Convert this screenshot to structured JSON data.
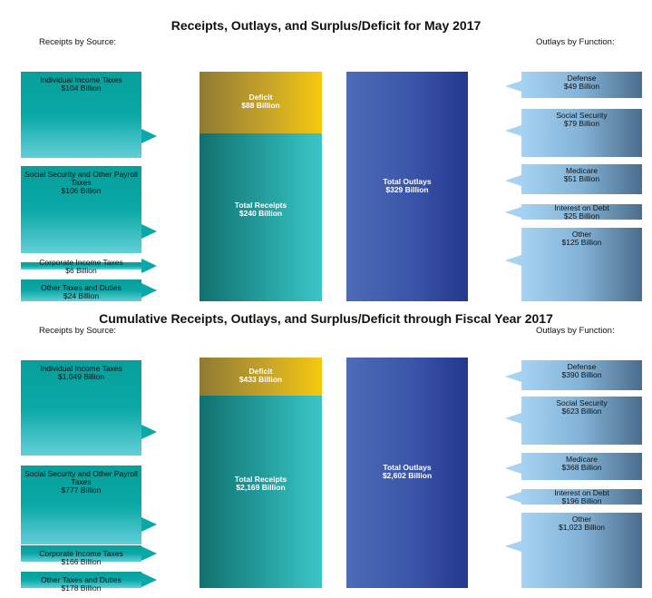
{
  "chart_data": [
    {
      "type": "bar",
      "title": "Receipts, Outlays, and Surplus/Deficit for May 2017",
      "receipts_heading": "Receipts by Source:",
      "outlays_heading": "Outlays by Function:",
      "receipts_by_source": [
        {
          "label": "Individual Income Taxes",
          "value_text": "$104 Billion",
          "value": 104
        },
        {
          "label": "Social Security and Other Payroll Taxes",
          "value_text": "$106 Billion",
          "value": 106
        },
        {
          "label": "Corporate Income Taxes",
          "value_text": "$6 Billion",
          "value": 6
        },
        {
          "label": "Other Taxes and Duties",
          "value_text": "$24 Billion",
          "value": 24
        }
      ],
      "deficit": {
        "label": "Deficit",
        "value_text": "$88 Billion",
        "value": 88
      },
      "total_receipts": {
        "label": "Total Receipts",
        "value_text": "$240 Billion",
        "value": 240
      },
      "total_outlays": {
        "label": "Total Outlays",
        "value_text": "$329 Billion",
        "value": 329
      },
      "outlays_by_function": [
        {
          "label": "Defense",
          "value_text": "$49 Billion",
          "value": 49
        },
        {
          "label": "Social Security",
          "value_text": "$79 Billion",
          "value": 79
        },
        {
          "label": "Medicare",
          "value_text": "$51 Billion",
          "value": 51
        },
        {
          "label": "Interest on Debt",
          "value_text": "$25 Billion",
          "value": 25
        },
        {
          "label": "Other",
          "value_text": "$125 Billion",
          "value": 125
        }
      ]
    },
    {
      "type": "bar",
      "title": "Cumulative Receipts, Outlays, and Surplus/Deficit through Fiscal Year 2017",
      "receipts_heading": "Receipts by Source:",
      "outlays_heading": "Outlays by Function:",
      "receipts_by_source": [
        {
          "label": "Individual Income Taxes",
          "value_text": "$1,049 Billion",
          "value": 1049
        },
        {
          "label": "Social Security and Other Payroll Taxes",
          "value_text": "$777 Billion",
          "value": 777
        },
        {
          "label": "Corporate Income Taxes",
          "value_text": "$166 Billion",
          "value": 166
        },
        {
          "label": "Other Taxes and Duties",
          "value_text": "$178 Billion",
          "value": 178
        }
      ],
      "deficit": {
        "label": "Deficit",
        "value_text": "$433 Billion",
        "value": 433
      },
      "total_receipts": {
        "label": "Total Receipts",
        "value_text": "$2,169 Billion",
        "value": 2169
      },
      "total_outlays": {
        "label": "Total Outlays",
        "value_text": "$2,602 Billion",
        "value": 2602
      },
      "outlays_by_function": [
        {
          "label": "Defense",
          "value_text": "$390 Billion",
          "value": 390
        },
        {
          "label": "Social Security",
          "value_text": "$623 Billion",
          "value": 623
        },
        {
          "label": "Medicare",
          "value_text": "$368 Billion",
          "value": 368
        },
        {
          "label": "Interest on Debt",
          "value_text": "$196 Billion",
          "value": 196
        },
        {
          "label": "Other",
          "value_text": "$1,023 Billion",
          "value": 1023
        }
      ]
    }
  ]
}
